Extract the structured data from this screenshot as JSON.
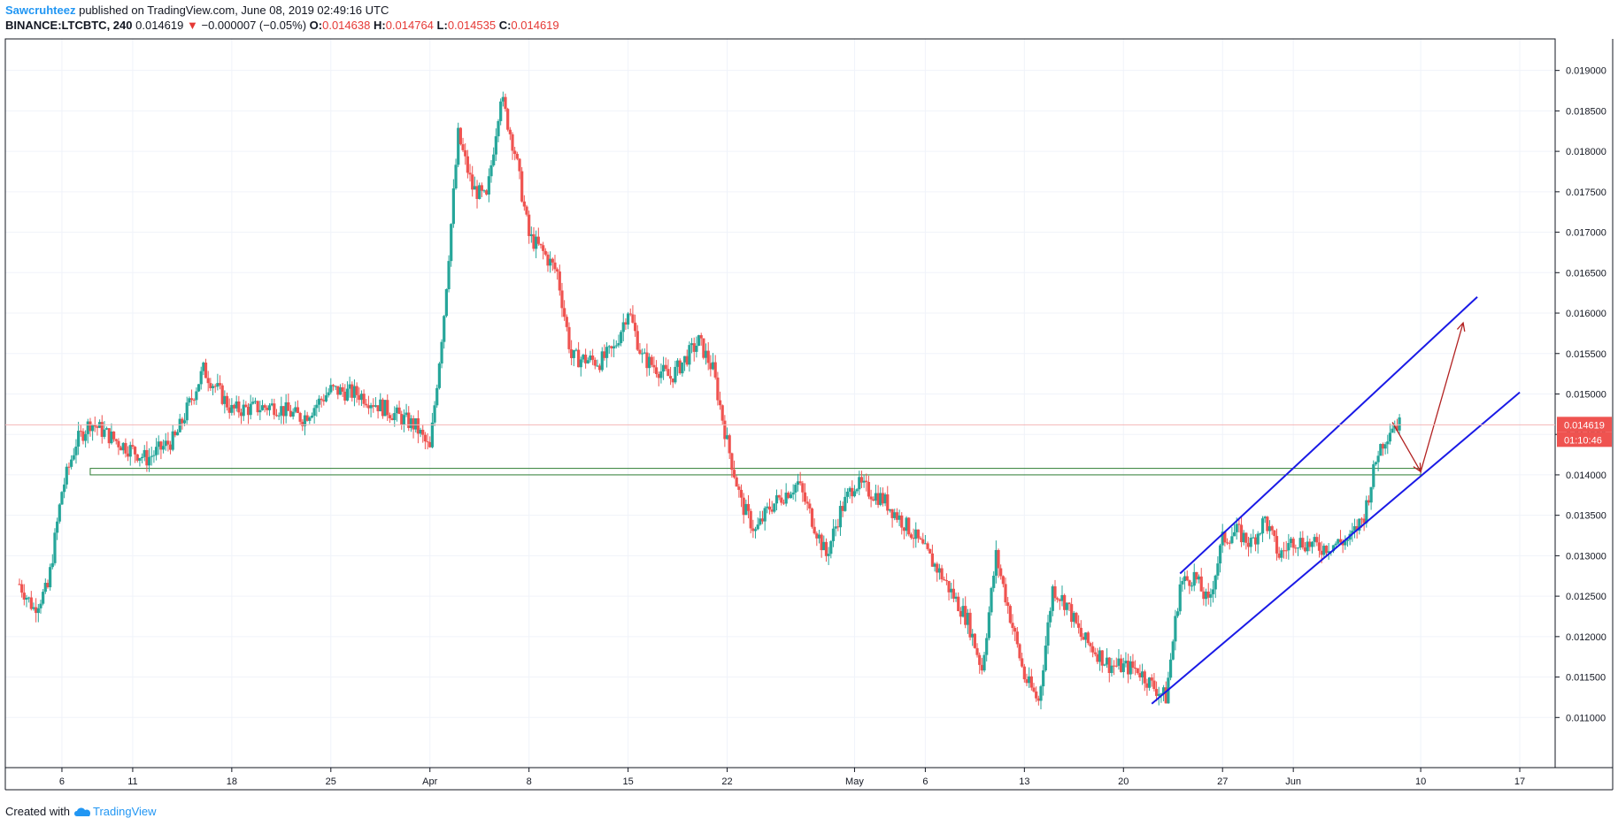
{
  "header": {
    "author": "Sawcruhteez",
    "published_text": " published on TradingView.com, June 08, 2019 02:49:16 UTC",
    "symbol": "BINANCE:LTCBTC, 240",
    "last": "0.014619",
    "change": "−0.000007 (−0.05%)",
    "o_label": "O:",
    "o_value": "0.014638",
    "h_label": "H:",
    "h_value": "0.014764",
    "l_label": "L:",
    "l_value": "0.014535",
    "c_label": "C:",
    "c_value": "0.014619"
  },
  "footer": {
    "created_with": "Created with",
    "brand": "TradingView"
  },
  "colors": {
    "up": "#26a69a",
    "down": "#ef5350",
    "wick_up": "#26a69a",
    "wick_down": "#ef5350",
    "channel": "#1a1ae6",
    "arrow": "#b22222",
    "zone": "#2e7d32",
    "price_tag": "#ef5350",
    "grid": "#f0f3fa",
    "axis_text": "#131722"
  },
  "chart_data": {
    "type": "candlestick",
    "y_axis": {
      "ticks": [
        "0.019000",
        "0.018500",
        "0.018000",
        "0.017500",
        "0.017000",
        "0.016500",
        "0.016000",
        "0.015500",
        "0.015000",
        "0.014500",
        "0.014000",
        "0.013500",
        "0.013000",
        "0.012500",
        "0.012000",
        "0.011500",
        "0.011000"
      ],
      "range": [
        0.01038,
        0.01939
      ]
    },
    "x_axis": {
      "labels": [
        "6",
        "11",
        "18",
        "25",
        "Apr",
        "8",
        "15",
        "22",
        "May",
        "6",
        "13",
        "20",
        "27",
        "Jun",
        "10",
        "17"
      ]
    },
    "last_price_label": "0.014619",
    "countdown_label": "01:10:46",
    "close_path": [
      {
        "d": "Mar 3",
        "c": 0.01265
      },
      {
        "d": "Mar 4",
        "c": 0.01235
      },
      {
        "d": "Mar 5",
        "c": 0.0126
      },
      {
        "d": "Mar 6",
        "c": 0.0138
      },
      {
        "d": "Mar 7",
        "c": 0.0144
      },
      {
        "d": "Mar 8",
        "c": 0.01465
      },
      {
        "d": "Mar 10",
        "c": 0.0144
      },
      {
        "d": "Mar 12",
        "c": 0.0142
      },
      {
        "d": "Mar 14",
        "c": 0.01445
      },
      {
        "d": "Mar 16",
        "c": 0.0153
      },
      {
        "d": "Mar 18",
        "c": 0.0148
      },
      {
        "d": "Mar 21",
        "c": 0.01485
      },
      {
        "d": "Mar 23",
        "c": 0.0147
      },
      {
        "d": "Mar 25",
        "c": 0.01505
      },
      {
        "d": "Mar 27",
        "c": 0.015
      },
      {
        "d": "Mar 29",
        "c": 0.0148
      },
      {
        "d": "Mar 31",
        "c": 0.0146
      },
      {
        "d": "Apr 1",
        "c": 0.0143
      },
      {
        "d": "Apr 2",
        "c": 0.016
      },
      {
        "d": "Apr 3",
        "c": 0.0182
      },
      {
        "d": "Apr 4",
        "c": 0.01755
      },
      {
        "d": "Apr 5",
        "c": 0.0174
      },
      {
        "d": "Apr 6",
        "c": 0.0187
      },
      {
        "d": "Apr 7",
        "c": 0.018
      },
      {
        "d": "Apr 8",
        "c": 0.01695
      },
      {
        "d": "Apr 9",
        "c": 0.01675
      },
      {
        "d": "Apr 10",
        "c": 0.0165
      },
      {
        "d": "Apr 11",
        "c": 0.01545
      },
      {
        "d": "Apr 13",
        "c": 0.0154
      },
      {
        "d": "Apr 14",
        "c": 0.01555
      },
      {
        "d": "Apr 15",
        "c": 0.01605
      },
      {
        "d": "Apr 16",
        "c": 0.01545
      },
      {
        "d": "Apr 18",
        "c": 0.0152
      },
      {
        "d": "Apr 20",
        "c": 0.01565
      },
      {
        "d": "Apr 21",
        "c": 0.0153
      },
      {
        "d": "Apr 22",
        "c": 0.0144
      },
      {
        "d": "Apr 23",
        "c": 0.01365
      },
      {
        "d": "Apr 24",
        "c": 0.0133
      },
      {
        "d": "Apr 25",
        "c": 0.0136
      },
      {
        "d": "Apr 27",
        "c": 0.0139
      },
      {
        "d": "Apr 29",
        "c": 0.013
      },
      {
        "d": "Apr 30",
        "c": 0.01355
      },
      {
        "d": "May 1",
        "c": 0.0139
      },
      {
        "d": "May 3",
        "c": 0.0137
      },
      {
        "d": "May 5",
        "c": 0.0133
      },
      {
        "d": "May 7",
        "c": 0.0128
      },
      {
        "d": "May 9",
        "c": 0.0122
      },
      {
        "d": "May 10",
        "c": 0.0116
      },
      {
        "d": "May 11",
        "c": 0.013
      },
      {
        "d": "May 12",
        "c": 0.01225
      },
      {
        "d": "May 13",
        "c": 0.0115
      },
      {
        "d": "May 14",
        "c": 0.0112
      },
      {
        "d": "May 15",
        "c": 0.0126
      },
      {
        "d": "May 16",
        "c": 0.0124
      },
      {
        "d": "May 17",
        "c": 0.012
      },
      {
        "d": "May 19",
        "c": 0.01165
      },
      {
        "d": "May 21",
        "c": 0.0116
      },
      {
        "d": "May 22",
        "c": 0.0114
      },
      {
        "d": "May 23",
        "c": 0.01125
      },
      {
        "d": "May 24",
        "c": 0.01265
      },
      {
        "d": "May 25",
        "c": 0.01275
      },
      {
        "d": "May 26",
        "c": 0.0124
      },
      {
        "d": "May 27",
        "c": 0.0132
      },
      {
        "d": "May 28",
        "c": 0.0133
      },
      {
        "d": "May 29",
        "c": 0.01315
      },
      {
        "d": "May 30",
        "c": 0.01345
      },
      {
        "d": "May 31",
        "c": 0.013
      },
      {
        "d": "Jun 1",
        "c": 0.0132
      },
      {
        "d": "Jun 3",
        "c": 0.0131
      },
      {
        "d": "Jun 5",
        "c": 0.0132
      },
      {
        "d": "Jun 6",
        "c": 0.0135
      },
      {
        "d": "Jun 7",
        "c": 0.0143
      },
      {
        "d": "Jun 8",
        "c": 0.01462
      }
    ],
    "annotations": {
      "support_zone": {
        "from": "Mar 8",
        "to": "Jun 10",
        "low": 0.014,
        "high": 0.01408
      },
      "channel_upper": [
        {
          "d": "May 24",
          "p": 0.01278
        },
        {
          "d": "Jun 14",
          "p": 0.0162
        }
      ],
      "channel_lower": [
        {
          "d": "May 22",
          "p": 0.01117
        },
        {
          "d": "Jun 17",
          "p": 0.01502
        }
      ],
      "arrow_path": [
        {
          "d": "Jun 8",
          "p": 0.01465
        },
        {
          "d": "Jun 10",
          "p": 0.01404
        },
        {
          "d": "Jun 13",
          "p": 0.01588
        }
      ]
    }
  }
}
